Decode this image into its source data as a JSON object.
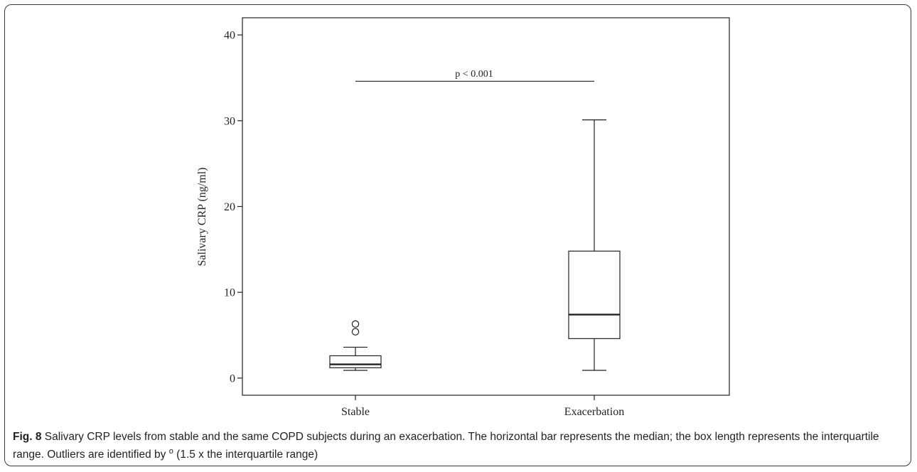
{
  "chart_data": {
    "type": "box",
    "ylabel": "Salivary CRP (ng/ml)",
    "xlabel": "",
    "ylim": [
      -2,
      42
    ],
    "yticks": [
      0,
      10,
      20,
      30,
      40
    ],
    "categories": [
      "Stable",
      "Exacerbation"
    ],
    "boxes": [
      {
        "category": "Stable",
        "whisker_low": 0.9,
        "q1": 1.2,
        "median": 1.6,
        "q3": 2.6,
        "whisker_high": 3.6,
        "outliers": [
          5.4,
          6.3
        ]
      },
      {
        "category": "Exacerbation",
        "whisker_low": 0.9,
        "q1": 4.6,
        "median": 7.4,
        "q3": 14.8,
        "whisker_high": 30.1,
        "outliers": []
      }
    ],
    "annotation": {
      "text": "p < 0.001",
      "y": 34.6,
      "x_from": "Stable",
      "x_to": "Exacerbation"
    },
    "outlier_marker": "o",
    "grid": false,
    "legend": "none"
  },
  "caption": {
    "label": "Fig. 8",
    "text": "Salivary CRP levels from stable and the same COPD subjects during an exacerbation. The horizontal bar represents the median; the box length represents the interquartile range. Outliers are identified by",
    "symbol": "o",
    "tail": "(1.5 x the interquartile range)"
  }
}
